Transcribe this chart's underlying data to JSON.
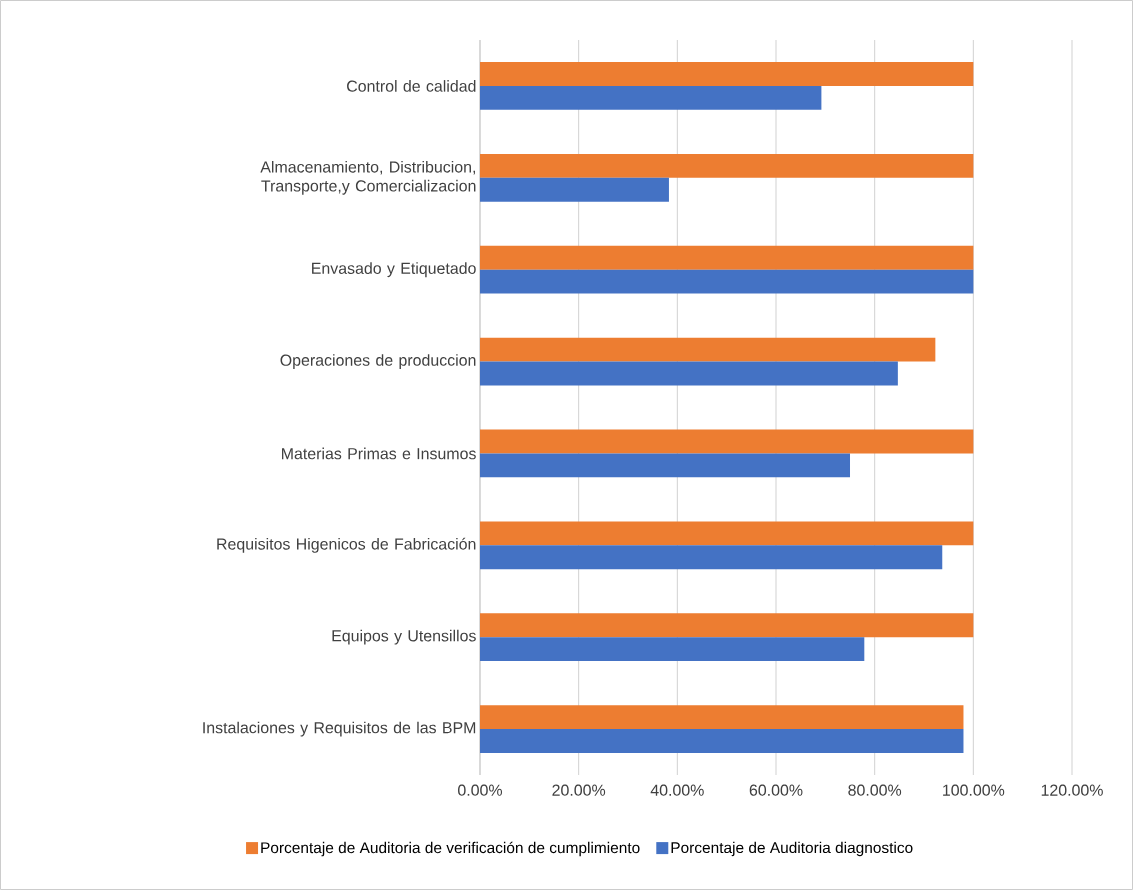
{
  "chart_data": {
    "type": "bar",
    "orientation": "horizontal",
    "categories": [
      "Control de calidad",
      "Almacenamiento, Distribucion, Transporte,y Comercializacion",
      "Envasado y Etiquetado",
      "Operaciones de produccion",
      "Materias Primas e Insumos",
      "Requisitos Higenicos de Fabricación",
      "Equipos y Utensillos",
      "Instalaciones y Requisitos de las BPM"
    ],
    "series": [
      {
        "name": "Porcentaje de Auditoria de verificación de  cumplimiento",
        "color": "#ed7d31",
        "values": [
          100,
          100,
          100,
          92.3,
          100,
          100,
          100,
          98
        ]
      },
      {
        "name": "Porcentaje de Auditoria diagnostico",
        "color": "#4472c4",
        "values": [
          69.2,
          38.3,
          100,
          84.7,
          75,
          93.7,
          77.9,
          98
        ]
      }
    ],
    "xlim": [
      0,
      120
    ],
    "xticks": [
      {
        "value": 0,
        "label": "0.00%"
      },
      {
        "value": 20,
        "label": "20.00%"
      },
      {
        "value": 40,
        "label": "40.00%"
      },
      {
        "value": 60,
        "label": "60.00%"
      },
      {
        "value": 80,
        "label": "80.00%"
      },
      {
        "value": 100,
        "label": "100.00%"
      },
      {
        "value": 120,
        "label": "120.00%"
      }
    ],
    "grid": "x",
    "legend": "bottom"
  }
}
